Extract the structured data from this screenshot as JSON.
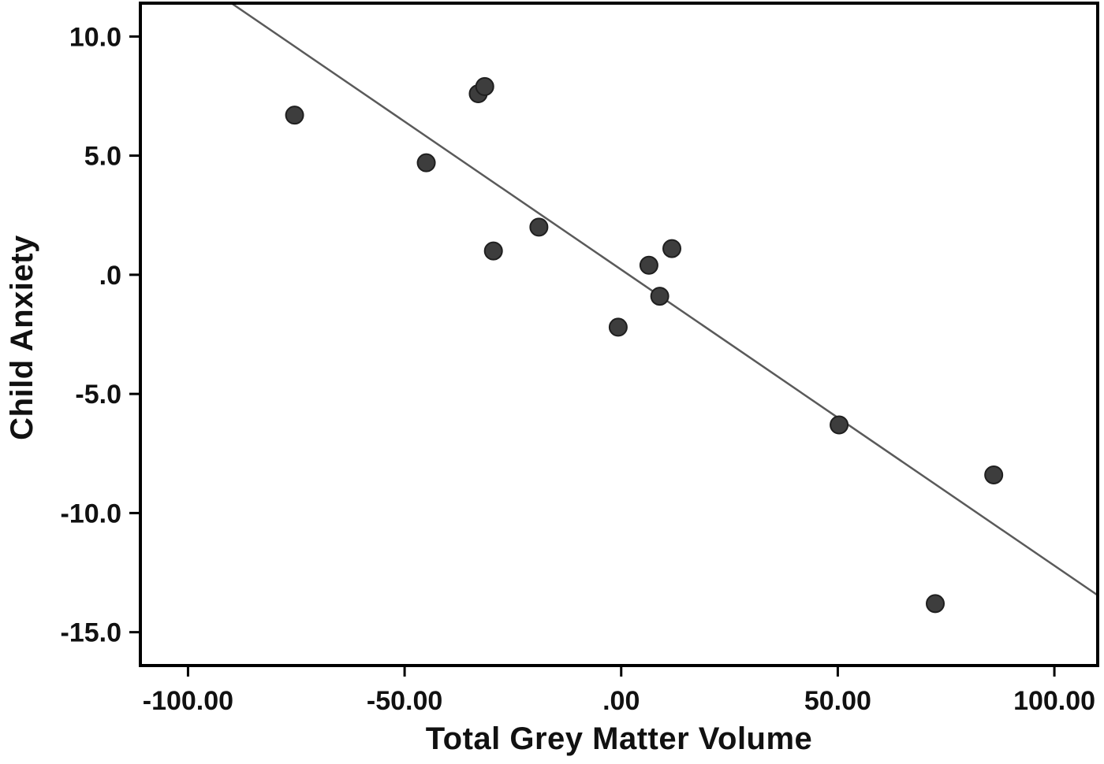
{
  "chart_data": {
    "type": "scatter",
    "title": "",
    "xlabel": "Total Grey Matter Volume",
    "ylabel": "Child Anxiety",
    "xlim": [
      -111,
      110
    ],
    "ylim": [
      -16.4,
      11.4
    ],
    "grid": false,
    "legend": "none",
    "x_ticks": [
      {
        "value": -100,
        "label": "-100.00"
      },
      {
        "value": -50,
        "label": "-50.00"
      },
      {
        "value": 0,
        "label": ".00"
      },
      {
        "value": 50,
        "label": "50.00"
      },
      {
        "value": 100,
        "label": "100.00"
      }
    ],
    "y_ticks": [
      {
        "value": 10,
        "label": "10.0"
      },
      {
        "value": 5,
        "label": "5.0"
      },
      {
        "value": 0,
        "label": ".0"
      },
      {
        "value": -5,
        "label": "-5.0"
      },
      {
        "value": -10,
        "label": "-10.0"
      },
      {
        "value": -15,
        "label": "-15.0"
      }
    ],
    "points": [
      {
        "x": -75.4,
        "y": 6.7
      },
      {
        "x": -45.0,
        "y": 4.7
      },
      {
        "x": -33.0,
        "y": 7.6
      },
      {
        "x": -31.5,
        "y": 7.9
      },
      {
        "x": -29.5,
        "y": 1.0
      },
      {
        "x": -19.0,
        "y": 2.0
      },
      {
        "x": -0.7,
        "y": -2.2
      },
      {
        "x": 6.4,
        "y": 0.4
      },
      {
        "x": 11.7,
        "y": 1.1
      },
      {
        "x": 8.9,
        "y": -0.9
      },
      {
        "x": 50.3,
        "y": -6.3
      },
      {
        "x": 86.0,
        "y": -8.4
      },
      {
        "x": 72.5,
        "y": -13.8
      }
    ],
    "fit_line": {
      "x1": -90.0,
      "y1": 11.4,
      "x2": 110.0,
      "y2": -13.45
    },
    "colors": {
      "point_fill": "#3d3d3d",
      "point_stroke": "#1f1f1f",
      "fit_line": "#5a5a5a",
      "frame": "#000000",
      "tick_text": "#111111"
    }
  }
}
